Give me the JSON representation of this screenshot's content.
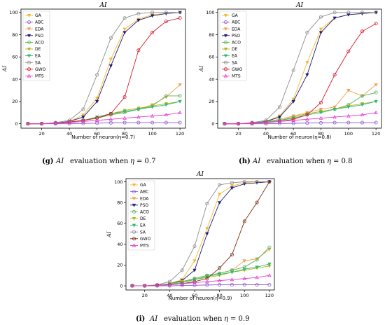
{
  "palette": {
    "GA": "#f5b82e",
    "ABC": "#8a5bd1",
    "EDA": "#f2a04e",
    "PSO": "#1a1a7a",
    "ACO": "#57b557",
    "DE": "#b7b51c",
    "EA": "#2eb87a",
    "SA": "#8c8c8c",
    "GWO_g": "#d6192b",
    "GWO_i": "#7a2e12",
    "MTS": "#e83ad0"
  },
  "chart_data": [
    {
      "id": "g",
      "type": "line",
      "title": "AI",
      "xlabel": "Number of neuron(η=0.7)",
      "ylabel": "AI",
      "xlim": [
        5,
        124
      ],
      "ylim": [
        -4,
        103
      ],
      "xticks": [
        "20",
        "40",
        "60",
        "80",
        "100",
        "120"
      ],
      "yticks": [
        "0",
        "20",
        "40",
        "60",
        "80",
        "100"
      ],
      "grid": false,
      "legend": "top-left",
      "x": [
        10,
        20,
        30,
        40,
        50,
        60,
        70,
        80,
        90,
        100,
        110,
        120
      ],
      "series": [
        {
          "name": "GA",
          "color_key": "GA",
          "marker": "tri-down",
          "values": [
            0,
            0,
            0.5,
            2,
            8,
            23,
            58,
            85,
            94,
            98,
            99,
            100
          ]
        },
        {
          "name": "ABC",
          "color_key": "ABC",
          "marker": "circle",
          "values": [
            0,
            0,
            0,
            0,
            0.3,
            0.5,
            0.8,
            1,
            1,
            1,
            1,
            1
          ]
        },
        {
          "name": "EDA",
          "color_key": "EDA",
          "marker": "tri-down",
          "values": [
            0,
            0,
            0.5,
            1.5,
            3,
            5,
            8,
            11,
            13,
            17,
            24,
            35
          ]
        },
        {
          "name": "PSO",
          "color_key": "PSO",
          "marker": "tri-down",
          "values": [
            0,
            0,
            0.5,
            2,
            6,
            20,
            52,
            82,
            93,
            97,
            99,
            100
          ]
        },
        {
          "name": "ACO",
          "color_key": "ACO",
          "marker": "circle",
          "values": [
            0,
            0,
            0.5,
            1.5,
            3,
            5,
            8,
            10,
            13,
            16,
            25,
            25
          ]
        },
        {
          "name": "DE",
          "color_key": "DE",
          "marker": "tri-down",
          "values": [
            0,
            0,
            0.5,
            1.5,
            3,
            6,
            9,
            12,
            14,
            16,
            18,
            20
          ]
        },
        {
          "name": "EA",
          "color_key": "EA",
          "marker": "tri-down",
          "values": [
            0,
            0,
            0.5,
            1.5,
            3,
            6,
            9,
            11,
            13,
            15,
            17,
            20
          ]
        },
        {
          "name": "SA",
          "color_key": "SA",
          "marker": "circle",
          "values": [
            0,
            0,
            1,
            3,
            13,
            44,
            77,
            95,
            99,
            100,
            100,
            100
          ]
        },
        {
          "name": "GWO",
          "color_key": "GWO_g",
          "marker": "circle",
          "values": [
            0,
            0,
            0.5,
            1.5,
            3,
            5,
            9,
            24,
            66,
            82,
            92,
            95
          ]
        },
        {
          "name": "MTS",
          "color_key": "MTS",
          "marker": "tri-up",
          "values": [
            0,
            0,
            0.3,
            1,
            2,
            3,
            4,
            5,
            6,
            7,
            8,
            10
          ]
        }
      ]
    },
    {
      "id": "h",
      "type": "line",
      "title": "AI",
      "xlabel": "Number of neuron(η=0.8)",
      "ylabel": "AI",
      "xlim": [
        5,
        124
      ],
      "ylim": [
        -4,
        103
      ],
      "xticks": [
        "20",
        "40",
        "60",
        "80",
        "100",
        "120"
      ],
      "yticks": [
        "0",
        "20",
        "40",
        "60",
        "80",
        "100"
      ],
      "grid": false,
      "legend": "top-left",
      "x": [
        10,
        20,
        30,
        40,
        50,
        60,
        70,
        80,
        90,
        100,
        110,
        120
      ],
      "series": [
        {
          "name": "GA",
          "color_key": "GA",
          "marker": "tri-down",
          "values": [
            0,
            0,
            0.5,
            2,
            7,
            22,
            55,
            85,
            95,
            98,
            99,
            100
          ]
        },
        {
          "name": "ABC",
          "color_key": "ABC",
          "marker": "circle",
          "values": [
            0,
            0,
            0,
            0,
            0.2,
            0.4,
            0.6,
            0.8,
            1,
            1,
            1,
            1
          ]
        },
        {
          "name": "EDA",
          "color_key": "EDA",
          "marker": "tri-down",
          "values": [
            0,
            0,
            0.5,
            2,
            4,
            7,
            10,
            13,
            15,
            30,
            25,
            35
          ]
        },
        {
          "name": "PSO",
          "color_key": "PSO",
          "marker": "tri-down",
          "values": [
            0,
            0,
            0.5,
            2,
            6,
            20,
            44,
            82,
            95,
            98,
            99,
            100
          ]
        },
        {
          "name": "ACO",
          "color_key": "ACO",
          "marker": "circle",
          "values": [
            0,
            0,
            0.5,
            1.5,
            3,
            6,
            9,
            11,
            13,
            17,
            25,
            28
          ]
        },
        {
          "name": "DE",
          "color_key": "DE",
          "marker": "tri-down",
          "values": [
            0,
            0,
            0.5,
            1.5,
            3,
            6,
            9,
            11,
            13,
            16,
            18,
            20
          ]
        },
        {
          "name": "EA",
          "color_key": "EA",
          "marker": "tri-down",
          "values": [
            0,
            0,
            0.5,
            1.5,
            3,
            5,
            8,
            10,
            13,
            15,
            17,
            20
          ]
        },
        {
          "name": "SA",
          "color_key": "SA",
          "marker": "circle",
          "values": [
            0,
            0,
            1,
            3,
            15,
            48,
            82,
            96,
            100,
            100,
            100,
            100
          ]
        },
        {
          "name": "GWO",
          "color_key": "GWO_g",
          "marker": "circle",
          "values": [
            0,
            0,
            0.5,
            1,
            2,
            4,
            8,
            19,
            44,
            65,
            83,
            90
          ]
        },
        {
          "name": "MTS",
          "color_key": "MTS",
          "marker": "tri-up",
          "values": [
            0,
            0,
            0.3,
            1,
            2,
            3,
            4,
            5,
            6,
            7,
            8,
            10
          ]
        }
      ]
    },
    {
      "id": "i",
      "type": "line",
      "title": "AI",
      "xlabel": "Number of neuron(η=0.9)",
      "ylabel": "AI",
      "xlim": [
        5,
        124
      ],
      "ylim": [
        -4,
        103
      ],
      "xticks": [
        "20",
        "40",
        "60",
        "80",
        "100",
        "120"
      ],
      "yticks": [
        "0",
        "20",
        "40",
        "60",
        "80",
        "100"
      ],
      "grid": false,
      "legend": "top-left",
      "x": [
        10,
        20,
        30,
        40,
        50,
        60,
        70,
        80,
        90,
        100,
        110,
        120
      ],
      "series": [
        {
          "name": "GA",
          "color_key": "GA",
          "marker": "tri-down",
          "values": [
            0,
            0,
            0.5,
            2,
            6,
            24,
            55,
            88,
            96,
            99,
            100,
            100
          ]
        },
        {
          "name": "ABC",
          "color_key": "ABC",
          "marker": "circle",
          "values": [
            0,
            0,
            0,
            0,
            0.3,
            0.5,
            0.8,
            1,
            1,
            1,
            1,
            1
          ]
        },
        {
          "name": "EDA",
          "color_key": "EDA",
          "marker": "tri-down",
          "values": [
            0,
            0,
            0.5,
            2,
            4,
            7,
            10,
            12,
            15,
            24,
            26,
            35
          ]
        },
        {
          "name": "PSO",
          "color_key": "PSO",
          "marker": "tri-down",
          "values": [
            0,
            0,
            0.5,
            2,
            5,
            15,
            50,
            80,
            94,
            98,
            99,
            100
          ]
        },
        {
          "name": "ACO",
          "color_key": "ACO",
          "marker": "circle",
          "values": [
            0,
            0,
            0.5,
            2,
            4,
            7,
            10,
            12,
            15,
            18,
            25,
            37
          ]
        },
        {
          "name": "DE",
          "color_key": "DE",
          "marker": "tri-down",
          "values": [
            0,
            0,
            0.5,
            2,
            4,
            6,
            8,
            10,
            13,
            15,
            17,
            19
          ]
        },
        {
          "name": "EA",
          "color_key": "EA",
          "marker": "tri-down",
          "values": [
            0,
            0,
            0.5,
            1.5,
            3,
            6,
            9,
            11,
            13,
            16,
            18,
            21
          ]
        },
        {
          "name": "SA",
          "color_key": "SA",
          "marker": "circle",
          "values": [
            0,
            0,
            1,
            4,
            15,
            38,
            79,
            97,
            99,
            100,
            100,
            100
          ]
        },
        {
          "name": "GWO",
          "color_key": "GWO_i",
          "marker": "circle",
          "values": [
            0,
            0,
            0.5,
            1,
            2,
            4,
            7,
            17,
            30,
            62,
            80,
            100
          ]
        },
        {
          "name": "MTS",
          "color_key": "MTS",
          "marker": "tri-up",
          "values": [
            0,
            0,
            0.3,
            1,
            2,
            3,
            4,
            5,
            6,
            7,
            8,
            10
          ]
        }
      ]
    }
  ],
  "captions": [
    {
      "letter": "(g)",
      "ai": "AI",
      "text": "evaluation when",
      "eta": "η",
      "value": "= 0.7"
    },
    {
      "letter": "(h)",
      "ai": "AI",
      "text": "evaluation when",
      "eta": "η",
      "value": "= 0.8"
    },
    {
      "letter": "(i)",
      "ai": "AI",
      "text": "evaluation when",
      "eta": "η",
      "value": "= 0.9"
    }
  ]
}
